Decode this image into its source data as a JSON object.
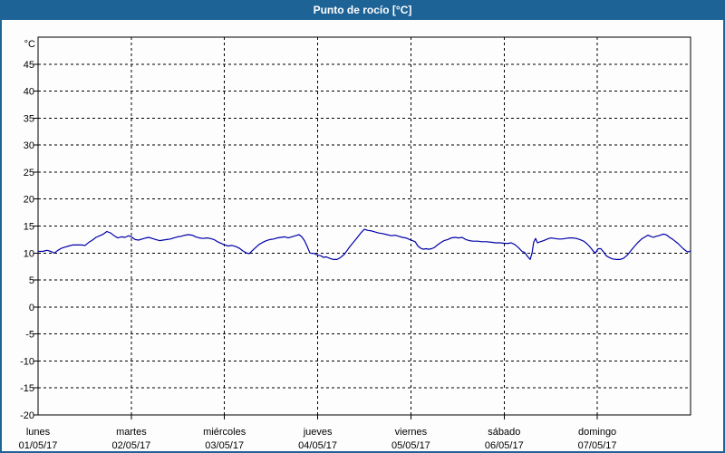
{
  "window": {
    "title": "Punto de rocío [°C]",
    "titlebar_color": "#1E6396",
    "border_color": "#1E6396",
    "background_color": "#fdfdfd"
  },
  "chart_data": {
    "type": "line",
    "title": "Punto de rocío [°C]",
    "ylabel": "°C",
    "xlabel": "",
    "ylim": [
      -20,
      50
    ],
    "ytick_labels": [
      45,
      40,
      35,
      30,
      25,
      20,
      15,
      10,
      5,
      0,
      -5,
      -10,
      -15,
      -20
    ],
    "xlim_hours": [
      0,
      168
    ],
    "x_day_ticks": [
      {
        "hour": 0,
        "day": "lunes",
        "date": "01/05/17"
      },
      {
        "hour": 24,
        "day": "martes",
        "date": "02/05/17"
      },
      {
        "hour": 48,
        "day": "miércoles",
        "date": "03/05/17"
      },
      {
        "hour": 72,
        "day": "jueves",
        "date": "04/05/17"
      },
      {
        "hour": 96,
        "day": "viernes",
        "date": "05/05/17"
      },
      {
        "hour": 120,
        "day": "sábado",
        "date": "06/05/17"
      },
      {
        "hour": 144,
        "day": "domingo",
        "date": "07/05/17"
      }
    ],
    "grid": "dashed",
    "legend": "none",
    "line_color": "#0000A8",
    "axis_color": "#000000",
    "series": [
      {
        "name": "Punto de rocío",
        "unit": "°C",
        "points": [
          [
            0,
            10.3
          ],
          [
            1.2,
            10.3
          ],
          [
            2.3,
            10.5
          ],
          [
            3.3,
            10.3
          ],
          [
            4.2,
            10.0
          ],
          [
            5.1,
            10.5
          ],
          [
            6.1,
            10.9
          ],
          [
            7,
            11.1
          ],
          [
            7.9,
            11.3
          ],
          [
            8.9,
            11.5
          ],
          [
            10,
            11.5
          ],
          [
            11.2,
            11.5
          ],
          [
            12.1,
            11.4
          ],
          [
            13.1,
            12.0
          ],
          [
            14,
            12.4
          ],
          [
            14.9,
            12.9
          ],
          [
            15.9,
            13.2
          ],
          [
            16.8,
            13.5
          ],
          [
            17.7,
            14.0
          ],
          [
            18.7,
            13.7
          ],
          [
            19.6,
            13.2
          ],
          [
            20.5,
            12.8
          ],
          [
            21.5,
            13.0
          ],
          [
            22.4,
            12.9
          ],
          [
            23.3,
            13.2
          ],
          [
            24,
            13.0
          ],
          [
            25,
            12.5
          ],
          [
            25.9,
            12.4
          ],
          [
            26.8,
            12.6
          ],
          [
            27.8,
            12.8
          ],
          [
            28.5,
            12.9
          ],
          [
            29.4,
            12.7
          ],
          [
            30.3,
            12.5
          ],
          [
            31.3,
            12.3
          ],
          [
            32.2,
            12.4
          ],
          [
            33.1,
            12.5
          ],
          [
            34.1,
            12.6
          ],
          [
            35,
            12.8
          ],
          [
            35.9,
            13.0
          ],
          [
            36.9,
            13.1
          ],
          [
            37.8,
            13.3
          ],
          [
            38.7,
            13.4
          ],
          [
            39.7,
            13.3
          ],
          [
            40.6,
            13.0
          ],
          [
            41.5,
            12.8
          ],
          [
            42.5,
            12.7
          ],
          [
            43.4,
            12.8
          ],
          [
            44.3,
            12.7
          ],
          [
            45.3,
            12.5
          ],
          [
            46.2,
            12.1
          ],
          [
            47.1,
            11.8
          ],
          [
            48.1,
            11.5
          ],
          [
            49,
            11.3
          ],
          [
            49.9,
            11.4
          ],
          [
            50.9,
            11.2
          ],
          [
            51.8,
            10.9
          ],
          [
            52.7,
            10.4
          ],
          [
            53.7,
            10.0
          ],
          [
            54.4,
            9.9
          ],
          [
            55.1,
            10.4
          ],
          [
            56,
            11.0
          ],
          [
            56.9,
            11.6
          ],
          [
            57.9,
            12.0
          ],
          [
            58.8,
            12.3
          ],
          [
            59.7,
            12.5
          ],
          [
            60.7,
            12.6
          ],
          [
            61.6,
            12.8
          ],
          [
            62.5,
            12.9
          ],
          [
            63.5,
            13.0
          ],
          [
            64.4,
            12.8
          ],
          [
            65.3,
            13.0
          ],
          [
            66.3,
            13.2
          ],
          [
            67.2,
            13.4
          ],
          [
            67.9,
            13.0
          ],
          [
            68.6,
            12.3
          ],
          [
            69.3,
            11.2
          ],
          [
            70,
            10.0
          ],
          [
            71.2,
            9.9
          ],
          [
            72.1,
            9.6
          ],
          [
            72.8,
            9.5
          ],
          [
            73.5,
            9.2
          ],
          [
            74.2,
            9.3
          ],
          [
            75.1,
            9.0
          ],
          [
            76.1,
            8.8
          ],
          [
            77,
            8.8
          ],
          [
            77.9,
            9.2
          ],
          [
            78.9,
            9.8
          ],
          [
            79.6,
            10.5
          ],
          [
            80.3,
            11.2
          ],
          [
            81.2,
            12.0
          ],
          [
            82.1,
            12.8
          ],
          [
            83.1,
            13.7
          ],
          [
            84,
            14.4
          ],
          [
            84.9,
            14.2
          ],
          [
            85.9,
            14.1
          ],
          [
            86.8,
            13.9
          ],
          [
            87.7,
            13.7
          ],
          [
            88.7,
            13.6
          ],
          [
            89.8,
            13.4
          ],
          [
            91,
            13.2
          ],
          [
            91.9,
            13.3
          ],
          [
            92.9,
            13.1
          ],
          [
            93.8,
            12.9
          ],
          [
            94.7,
            12.8
          ],
          [
            95.7,
            12.5
          ],
          [
            96.4,
            12.3
          ],
          [
            97.1,
            12.1
          ],
          [
            97.8,
            11.3
          ],
          [
            98.5,
            10.9
          ],
          [
            99.2,
            10.7
          ],
          [
            99.9,
            10.8
          ],
          [
            100.6,
            10.7
          ],
          [
            101.3,
            10.8
          ],
          [
            102,
            11.0
          ],
          [
            102.7,
            11.4
          ],
          [
            103.6,
            11.9
          ],
          [
            104.5,
            12.3
          ],
          [
            105.5,
            12.5
          ],
          [
            106.4,
            12.8
          ],
          [
            107.3,
            12.9
          ],
          [
            108.3,
            12.8
          ],
          [
            109.2,
            12.9
          ],
          [
            110.1,
            12.5
          ],
          [
            111.1,
            12.3
          ],
          [
            112,
            12.2
          ],
          [
            113.2,
            12.2
          ],
          [
            114.3,
            12.1
          ],
          [
            115.5,
            12.1
          ],
          [
            116.7,
            12.0
          ],
          [
            117.8,
            11.9
          ],
          [
            119,
            11.9
          ],
          [
            120.2,
            11.8
          ],
          [
            121.1,
            11.8
          ],
          [
            121.8,
            11.9
          ],
          [
            122.7,
            11.6
          ],
          [
            123.7,
            11.0
          ],
          [
            124.6,
            10.3
          ],
          [
            125.3,
            10.1
          ],
          [
            126,
            9.4
          ],
          [
            126.7,
            8.8
          ],
          [
            127.2,
            10.0
          ],
          [
            127.6,
            12.0
          ],
          [
            128.1,
            12.7
          ],
          [
            128.6,
            11.9
          ],
          [
            129.3,
            12.1
          ],
          [
            130.2,
            12.3
          ],
          [
            131.1,
            12.6
          ],
          [
            132.1,
            12.8
          ],
          [
            133,
            12.7
          ],
          [
            133.9,
            12.6
          ],
          [
            134.9,
            12.6
          ],
          [
            135.8,
            12.7
          ],
          [
            136.7,
            12.8
          ],
          [
            137.7,
            12.8
          ],
          [
            138.6,
            12.7
          ],
          [
            139.5,
            12.5
          ],
          [
            140.5,
            12.2
          ],
          [
            141.2,
            11.8
          ],
          [
            141.9,
            11.3
          ],
          [
            142.6,
            10.7
          ],
          [
            143,
            10.3
          ],
          [
            143.5,
            10.0
          ],
          [
            144.2,
            10.8
          ],
          [
            144.9,
            10.8
          ],
          [
            145.6,
            10.2
          ],
          [
            146.3,
            9.5
          ],
          [
            147,
            9.2
          ],
          [
            147.9,
            8.9
          ],
          [
            148.9,
            8.8
          ],
          [
            149.8,
            8.8
          ],
          [
            150.7,
            9.0
          ],
          [
            151.7,
            9.6
          ],
          [
            152.6,
            10.4
          ],
          [
            153.5,
            11.2
          ],
          [
            154.5,
            12.0
          ],
          [
            155.4,
            12.6
          ],
          [
            156.3,
            13.0
          ],
          [
            157,
            13.3
          ],
          [
            157.7,
            13.1
          ],
          [
            158.4,
            12.9
          ],
          [
            159.1,
            13.1
          ],
          [
            159.8,
            13.2
          ],
          [
            160.5,
            13.4
          ],
          [
            161.2,
            13.5
          ],
          [
            161.9,
            13.3
          ],
          [
            162.6,
            12.9
          ],
          [
            163.3,
            12.6
          ],
          [
            164,
            12.2
          ],
          [
            164.7,
            11.8
          ],
          [
            165.4,
            11.3
          ],
          [
            166.1,
            10.8
          ],
          [
            166.8,
            10.4
          ],
          [
            167.3,
            10.2
          ],
          [
            167.7,
            10.3
          ],
          [
            168,
            10.4
          ]
        ]
      }
    ]
  }
}
